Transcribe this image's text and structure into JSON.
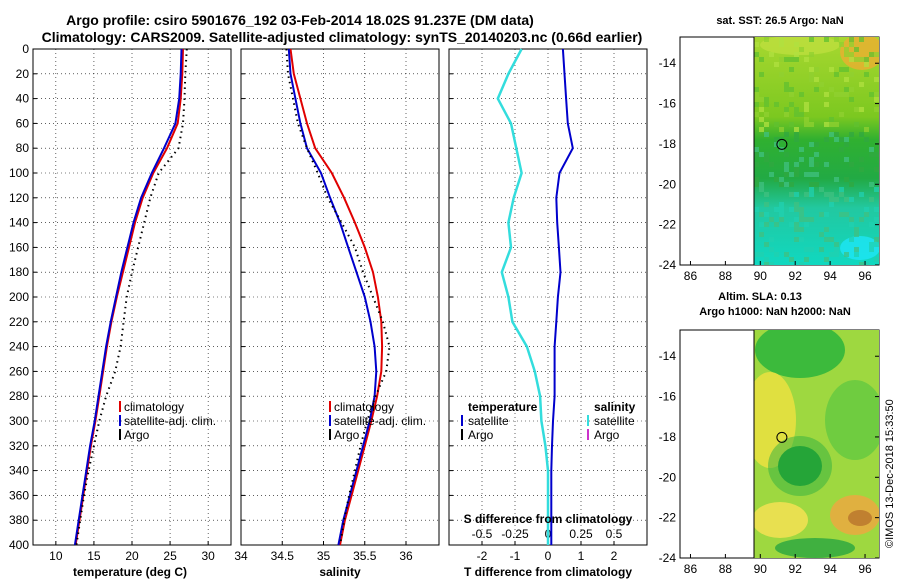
{
  "title": {
    "line1": "Argo profile: csiro 5901676_192 03-Feb-2014 18.02S 91.237E (DM data)",
    "line2": "Climatology: CARS2009. Satellite-adjusted climatology: synTS_20140203.nc (0.66d earlier)"
  },
  "watermark": "©IMOS 13-Dec-2018 15:33:50",
  "colors": {
    "climatology": "#e00000",
    "satellite": "#0000cc",
    "argo": "#000000",
    "s_satellite": "#33dddd",
    "s_argo": "#cc33cc"
  },
  "chart_data": [
    {
      "id": "temperature",
      "type": "line",
      "xlabel": "temperature (deg C)",
      "xlim": [
        7,
        33
      ],
      "ylim": [
        400,
        0
      ],
      "xticks": [
        "10",
        "15",
        "20",
        "25",
        "30"
      ],
      "xtick_values": [
        10,
        15,
        20,
        25,
        30
      ],
      "legend": [
        "climatology",
        "satellite-adj. clim.",
        "Argo"
      ],
      "depth": [
        0,
        20,
        40,
        60,
        80,
        100,
        120,
        140,
        160,
        180,
        200,
        220,
        240,
        260,
        280,
        300,
        320,
        340,
        360,
        380,
        400
      ],
      "series": [
        {
          "name": "climatology",
          "values": [
            26.7,
            26.6,
            26.4,
            26.0,
            24.6,
            22.8,
            21.4,
            20.4,
            19.6,
            18.8,
            18.0,
            17.3,
            16.7,
            16.2,
            15.7,
            15.2,
            14.6,
            14.1,
            13.6,
            13.1,
            12.6
          ]
        },
        {
          "name": "satellite-adj. clim.",
          "values": [
            26.5,
            26.4,
            26.2,
            25.7,
            24.2,
            22.6,
            21.2,
            20.2,
            19.4,
            18.6,
            17.9,
            17.2,
            16.6,
            16.1,
            15.6,
            15.1,
            14.5,
            14.0,
            13.5,
            13.0,
            12.5
          ]
        },
        {
          "name": "Argo",
          "values": [
            27.2,
            27.0,
            26.9,
            26.7,
            26.1,
            23.5,
            22.4,
            21.6,
            20.8,
            20.0,
            19.3,
            18.9,
            18.5,
            17.8,
            16.6,
            15.7,
            15.0,
            14.3,
            13.7,
            13.2,
            12.7
          ]
        }
      ]
    },
    {
      "id": "salinity",
      "type": "line",
      "xlabel": "salinity",
      "xlim": [
        34,
        36.4
      ],
      "ylim": [
        400,
        0
      ],
      "xticks": [
        "34",
        "34.5",
        "35",
        "35.5",
        "36"
      ],
      "xtick_values": [
        34,
        34.5,
        35,
        35.5,
        36
      ],
      "legend": [
        "climatology",
        "satellite-adj. clim.",
        "Argo"
      ],
      "depth": [
        0,
        20,
        40,
        60,
        80,
        100,
        120,
        140,
        160,
        180,
        200,
        220,
        240,
        260,
        280,
        300,
        320,
        340,
        360,
        380,
        400
      ],
      "series": [
        {
          "name": "climatology",
          "values": [
            34.6,
            34.64,
            34.72,
            34.8,
            34.9,
            35.1,
            35.25,
            35.38,
            35.5,
            35.6,
            35.66,
            35.7,
            35.71,
            35.7,
            35.65,
            35.58,
            35.5,
            35.42,
            35.34,
            35.26,
            35.2
          ]
        },
        {
          "name": "satellite-adj. clim.",
          "values": [
            34.58,
            34.6,
            34.66,
            34.72,
            34.8,
            34.97,
            35.08,
            35.2,
            35.3,
            35.4,
            35.5,
            35.57,
            35.62,
            35.64,
            35.62,
            35.56,
            35.48,
            35.4,
            35.32,
            35.24,
            35.18
          ]
        },
        {
          "name": "Argo",
          "values": [
            34.55,
            34.57,
            34.63,
            34.69,
            34.8,
            34.93,
            35.05,
            35.22,
            35.38,
            35.48,
            35.6,
            35.72,
            35.8,
            35.76,
            35.63,
            35.53,
            35.45,
            35.38,
            35.31,
            35.25,
            35.2
          ]
        }
      ]
    },
    {
      "id": "difference",
      "type": "line",
      "xlabel": "T difference from climatology",
      "xlabel_top": "S difference from climatology",
      "xlim": [
        -3,
        3
      ],
      "ylim": [
        400,
        0
      ],
      "xticks": [
        "-2",
        "-1",
        "0",
        "1",
        "2"
      ],
      "xtick_values": [
        -2,
        -1,
        0,
        1,
        2
      ],
      "s_xticks": [
        "-0.5",
        "-0.25",
        "0",
        "0.25",
        "0.5"
      ],
      "s_xtick_values": [
        -0.5,
        -0.25,
        0,
        0.25,
        0.5
      ],
      "legend_t": [
        "temperature",
        "satellite",
        "Argo"
      ],
      "legend_s": [
        "salinity",
        "satellite",
        "Argo"
      ],
      "depth": [
        0,
        20,
        40,
        60,
        80,
        100,
        120,
        140,
        160,
        180,
        200,
        220,
        240,
        260,
        280,
        300,
        320,
        340,
        360,
        380,
        400
      ],
      "series": [
        {
          "name": "T satellite",
          "values": [
            0.45,
            0.5,
            0.55,
            0.6,
            0.75,
            0.35,
            0.25,
            0.28,
            0.33,
            0.38,
            0.3,
            0.25,
            0.2,
            0.2,
            0.2,
            0.15,
            0.12,
            0.1,
            0.1,
            0.1,
            0.1
          ]
        },
        {
          "name": "S satellite",
          "values": [
            -0.2,
            -0.3,
            -0.38,
            -0.28,
            -0.24,
            -0.2,
            -0.26,
            -0.3,
            -0.28,
            -0.35,
            -0.3,
            -0.27,
            -0.16,
            -0.1,
            -0.06,
            -0.05,
            -0.02,
            0,
            0,
            0,
            0
          ]
        }
      ]
    }
  ],
  "maps": [
    {
      "id": "sst-map",
      "title": "sat. SST: 26.5 Argo: NaN",
      "xticks": [
        "86",
        "88",
        "90",
        "92",
        "94",
        "96"
      ],
      "xtick_values": [
        86,
        88,
        90,
        92,
        94,
        96
      ],
      "yticks": [
        "-14",
        "-16",
        "-18",
        "-20",
        "-22",
        "-24"
      ],
      "ytick_values": [
        -14,
        -16,
        -18,
        -20,
        -22,
        -24
      ],
      "xlim": [
        85.4,
        96.8
      ],
      "ylim": [
        -24,
        -12.7
      ],
      "marker": {
        "lon": 91.237,
        "lat": -18.02
      }
    },
    {
      "id": "sla-map",
      "title": "Altim. SLA: 0.13",
      "subtitle": "Argo h1000: NaN h2000: NaN",
      "xticks": [
        "86",
        "88",
        "90",
        "92",
        "94",
        "96"
      ],
      "xtick_values": [
        86,
        88,
        90,
        92,
        94,
        96
      ],
      "yticks": [
        "-14",
        "-16",
        "-18",
        "-20",
        "-22",
        "-24"
      ],
      "ytick_values": [
        -14,
        -16,
        -18,
        -20,
        -22,
        -24
      ],
      "xlim": [
        85.4,
        96.8
      ],
      "ylim": [
        -24,
        -12.7
      ],
      "marker": {
        "lon": 91.237,
        "lat": -18.02
      }
    }
  ],
  "depth_ticks": [
    "0",
    "20",
    "40",
    "60",
    "80",
    "100",
    "120",
    "140",
    "160",
    "180",
    "200",
    "220",
    "240",
    "260",
    "280",
    "300",
    "320",
    "340",
    "360",
    "380",
    "400"
  ]
}
